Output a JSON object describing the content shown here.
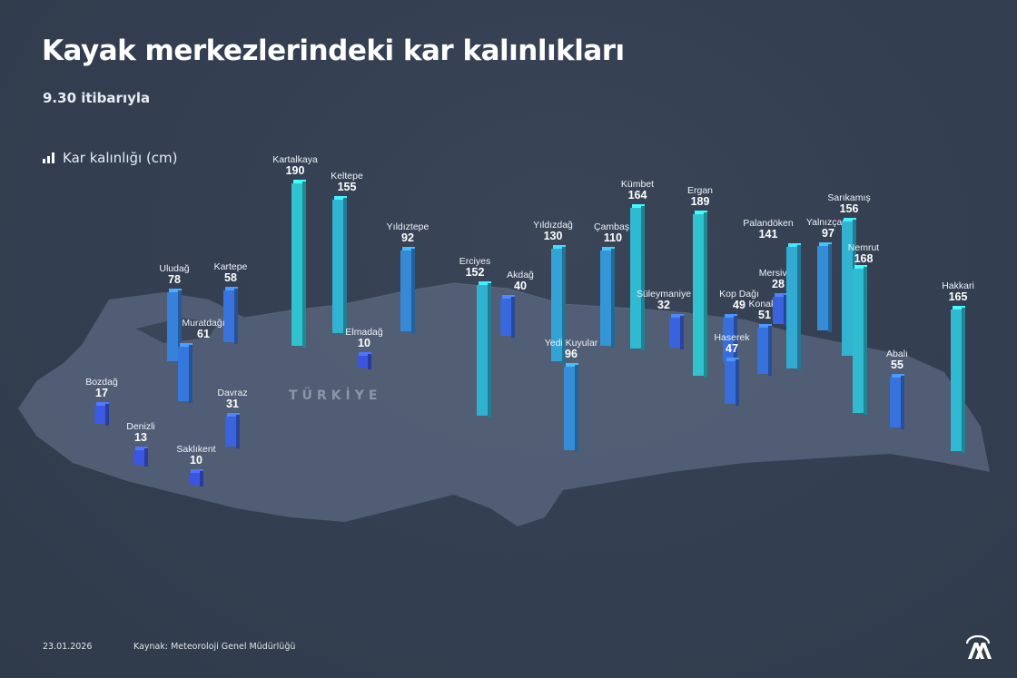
{
  "header": {
    "title": "Kayak merkezlerindeki kar kalınlıkları",
    "subtitle": "9.30 itibarıyla",
    "legend_label": "Kar kalınlığı (cm)",
    "legend_icon": "bar-chart-icon"
  },
  "map": {
    "country_label": "TÜRKİYE"
  },
  "colors": {
    "low": "#3b55e0",
    "high": "#2fc3cf",
    "background": "#344052"
  },
  "chart_data": {
    "type": "bar",
    "title": "Kayak merkezlerindeki kar kalınlıkları",
    "ylabel": "Kar kalınlığı (cm)",
    "categories": [
      "Uludağ",
      "Kartepe",
      "Muratdağı",
      "Kartalkaya",
      "Keltepe",
      "Yıldıztepe",
      "Elmadağ",
      "Bozdağ",
      "Denizli",
      "Saklıkent",
      "Davraz",
      "Erciyes",
      "Akdağ",
      "Yıldızdağ",
      "Çambaşı",
      "Kümbet",
      "Süleymaniye",
      "Yedi Kuyular",
      "Ergan",
      "Kop Dağı",
      "Haserek",
      "Konaklı",
      "Mersivan",
      "Palandöken",
      "Yalnızçam",
      "Sarıkamış",
      "Nemrut",
      "Abalı",
      "Hakkari"
    ],
    "values": [
      78,
      58,
      61,
      190,
      155,
      92,
      10,
      17,
      13,
      10,
      31,
      152,
      40,
      130,
      110,
      164,
      32,
      96,
      189,
      49,
      47,
      51,
      28,
      141,
      97,
      156,
      168,
      55,
      165
    ]
  },
  "footer": {
    "date": "23.01.2026",
    "source": "Kaynak: Meteoroloji Genel Müdürlüğü",
    "logo_text": "AA"
  }
}
